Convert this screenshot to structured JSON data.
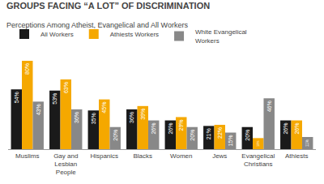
{
  "chart_data": {
    "type": "bar",
    "title": "GROUPS FACING “A LOT” OF DISCRIMINATION",
    "subtitle": "Perceptions Among Atheist, Evangelical and All Workers",
    "categories": [
      "Muslims",
      "Gay and\nLesbian\nPeople",
      "Hispanics",
      "Blacks",
      "Women",
      "Jews",
      "Evangelical\nChristians",
      "Athiests"
    ],
    "series": [
      {
        "name": "All Workers",
        "color": "#1a1a1a",
        "values": [
          54,
          53,
          35,
          36,
          26,
          21,
          20,
          26
        ],
        "value_labels": [
          "54%",
          "53%",
          "35%",
          "36%",
          "26%",
          "21%",
          "20%",
          "26%"
        ]
      },
      {
        "name": "Athiests Workers",
        "color": "#f5a800",
        "values": [
          80,
          63,
          45,
          39,
          29,
          22,
          10,
          26
        ],
        "value_labels": [
          "80%",
          "63%",
          "45%",
          "39%",
          "29%",
          "22%",
          "10%",
          "26%"
        ]
      },
      {
        "name": "White Evangelical\nWorkers",
        "color": "#888888",
        "values": [
          43,
          36,
          20,
          26,
          20,
          15,
          46,
          11
        ],
        "value_labels": [
          "43%",
          "36%",
          "20%",
          "26%",
          "20%",
          "15%",
          "46%",
          "11%"
        ]
      }
    ],
    "ylim": [
      0,
      88
    ],
    "tick_labels": "x",
    "grid": false,
    "legend": "top",
    "data_labels": true
  }
}
